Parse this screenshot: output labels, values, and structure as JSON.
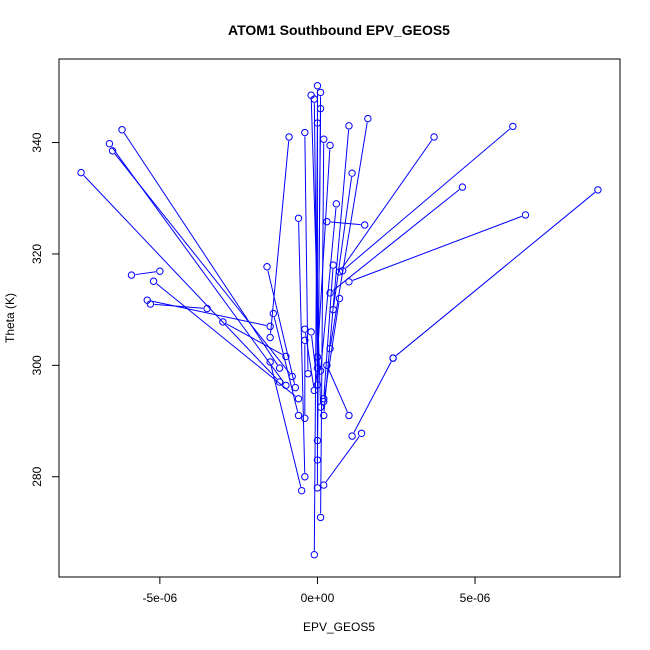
{
  "chart_data": {
    "type": "line",
    "title": "ATOM1 Southbound EPV_GEOS5",
    "xlabel": "EPV_GEOS5",
    "ylabel": "Theta (K)",
    "xlim": [
      -8.2e-06,
      9.6e-06
    ],
    "ylim": [
      262,
      355
    ],
    "x_ticks": [
      -5e-06,
      0,
      5e-06
    ],
    "x_tick_labels": [
      "-5e-06",
      "0e+00",
      "5e-06"
    ],
    "y_ticks": [
      280,
      300,
      320,
      340
    ],
    "y_tick_labels": [
      "280",
      "300",
      "320",
      "340"
    ],
    "grid": false,
    "legend": "none",
    "series": [
      {
        "color": "#0000ff",
        "marker": "open-circle",
        "points": [
          [
            -7.5e-06,
            334.6
          ],
          [
            -1.2e-06,
            297.0
          ],
          [
            -6.5e-06,
            338.5
          ],
          [
            -8e-07,
            298.0
          ],
          [
            -6.6e-06,
            339.8
          ],
          [
            -1e-06,
            296.4
          ],
          [
            -6.2e-06,
            342.3
          ],
          [
            -1.2e-06,
            299.5
          ],
          [
            -5.9e-06,
            316.2
          ],
          [
            -5e-06,
            316.9
          ],
          [
            -5.2e-06,
            315.1
          ],
          [
            -6e-07,
            294.0
          ],
          [
            -5.4e-06,
            311.7
          ],
          [
            -1.5e-06,
            307.0
          ],
          [
            -5.3e-06,
            311.0
          ],
          [
            -3.5e-06,
            310.2
          ],
          [
            -3e-06,
            307.8
          ],
          [
            -1e-06,
            301.6
          ],
          [
            -1.6e-06,
            317.7
          ],
          [
            -7e-07,
            296.0
          ],
          [
            -1.4e-06,
            309.3
          ],
          [
            -6e-07,
            291.0
          ],
          [
            -1.5e-06,
            300.6
          ],
          [
            -5e-07,
            277.5
          ],
          [
            -9e-07,
            341.0
          ],
          [
            -1.5e-06,
            305.0
          ],
          [
            -6e-07,
            326.4
          ],
          [
            -4e-07,
            280.0
          ],
          [
            -4e-07,
            341.8
          ],
          [
            -3e-07,
            298.5
          ],
          [
            -2e-07,
            348.5
          ],
          [
            1e-07,
            292.5
          ],
          [
            -1e-07,
            347.8
          ],
          [
            0.0,
            299.5
          ],
          [
            0.0,
            343.5
          ],
          [
            -1e-07,
            266.0
          ],
          [
            0.0,
            350.2
          ],
          [
            0.0,
            278.0
          ],
          [
            1e-07,
            349.0
          ],
          [
            0.0,
            283.0
          ],
          [
            1e-07,
            346.1
          ],
          [
            0.0,
            286.5
          ],
          [
            2e-07,
            340.6
          ],
          [
            1e-07,
            272.7
          ],
          [
            4e-07,
            339.5
          ],
          [
            0.0,
            301.5
          ],
          [
            1e-06,
            343.0
          ],
          [
            2e-07,
            291.0
          ],
          [
            1.6e-06,
            344.3
          ],
          [
            4e-07,
            303.0
          ],
          [
            3.7e-06,
            341.0
          ],
          [
            7e-07,
            316.8
          ],
          [
            6.2e-06,
            342.9
          ],
          [
            8e-07,
            317.0
          ],
          [
            4.6e-06,
            332.0
          ],
          [
            4e-07,
            313.0
          ],
          [
            1.1e-06,
            334.5
          ],
          [
            5e-07,
            310.0
          ],
          [
            1.5e-06,
            325.2
          ],
          [
            3e-07,
            325.8
          ],
          [
            6.6e-06,
            327.0
          ],
          [
            1e-06,
            315.0
          ],
          [
            8.9e-06,
            331.5
          ],
          [
            2.4e-06,
            301.3
          ],
          [
            2.4e-06,
            301.3
          ],
          [
            1.1e-06,
            287.3
          ],
          [
            1.4e-06,
            287.8
          ],
          [
            2e-07,
            278.5
          ],
          [
            1e-06,
            291.0
          ],
          [
            3e-07,
            300.0
          ],
          [
            7e-07,
            312.0
          ],
          [
            2e-07,
            293.5
          ],
          [
            6e-07,
            329.0
          ],
          [
            1e-07,
            299.0
          ],
          [
            5e-07,
            318.0
          ],
          [
            2e-07,
            294.0
          ],
          [
            -2e-07,
            306.0
          ],
          [
            0.0,
            296.5
          ],
          [
            -4e-07,
            306.5
          ],
          [
            -1e-07,
            295.5
          ],
          [
            -4e-07,
            304.5
          ],
          [
            -4e-07,
            290.5
          ]
        ]
      }
    ]
  }
}
